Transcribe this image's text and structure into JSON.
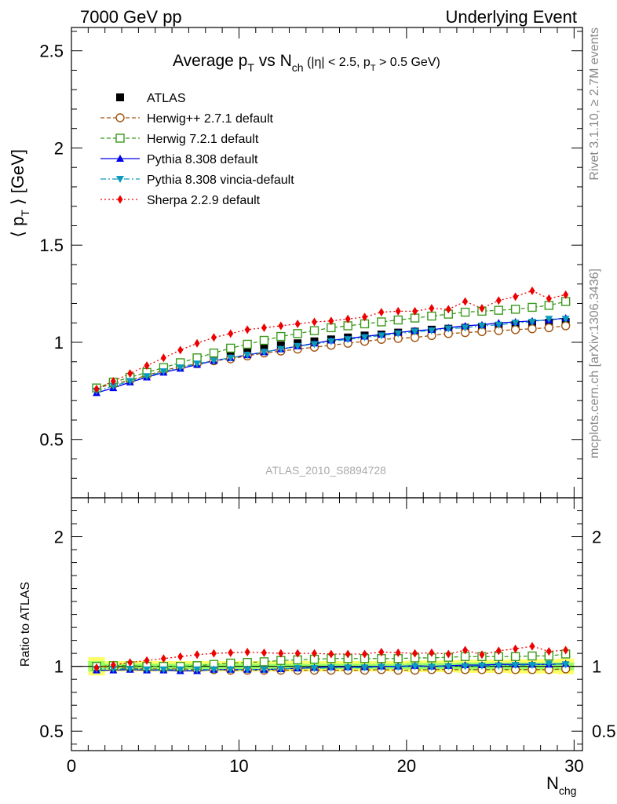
{
  "header": {
    "left": "7000 GeV pp",
    "right": "Underlying Event"
  },
  "side_labels": {
    "top": "Rivet 3.1.10, ≥ 2.7M events",
    "bottom": "mcplots.cern.ch [arXiv:1306.3436]"
  },
  "watermark": "ATLAS_2010_S8894728",
  "title": {
    "main": "Average p",
    "main_sub": "T",
    "vs": " vs N",
    "vs_sub": "ch",
    "cut": " (|η| < 2.5, p",
    "cut_sub": "T",
    "cut_end": " > 0.5 GeV)"
  },
  "ylabel": {
    "pre": "⟨ p",
    "sub": "T",
    "post": " ⟩ [GeV]"
  },
  "ratio_ylabel": "Ratio to ATLAS",
  "xlabel": {
    "main": "N",
    "sub": "chg"
  },
  "colors": {
    "atlas": "#000000",
    "herwigpp": "#a0520d",
    "herwig7": "#3a9a1c",
    "pythia": "#0000ee",
    "vincia": "#0a9bbf",
    "sherpa": "#ee0000",
    "band_inner": "#99ff66",
    "band_outer": "#ffff66"
  },
  "legend": [
    {
      "key": "atlas",
      "label": "ATLAS"
    },
    {
      "key": "herwigpp",
      "label": "Herwig++ 2.7.1 default"
    },
    {
      "key": "herwig7",
      "label": "Herwig 7.2.1 default"
    },
    {
      "key": "pythia",
      "label": "Pythia 8.308 default"
    },
    {
      "key": "vincia",
      "label": "Pythia 8.308 vincia-default"
    },
    {
      "key": "sherpa",
      "label": "Sherpa 2.2.9 default"
    }
  ],
  "chart_data": [
    {
      "type": "line",
      "panel": "main",
      "xlim": [
        0,
        30.5
      ],
      "ylim": [
        0.2,
        2.62
      ],
      "xticks": [
        0,
        10,
        20,
        30
      ],
      "yticks": [
        0.5,
        1,
        1.5,
        2,
        2.5
      ],
      "x": [
        1.5,
        2.5,
        3.5,
        4.5,
        5.5,
        6.5,
        7.5,
        8.5,
        9.5,
        10.5,
        11.5,
        12.5,
        13.5,
        14.5,
        15.5,
        16.5,
        17.5,
        18.5,
        19.5,
        20.5,
        21.5,
        22.5,
        23.5,
        24.5,
        25.5,
        26.5,
        27.5,
        28.5,
        29.5
      ],
      "series": [
        {
          "key": "atlas",
          "name": "ATLAS",
          "marker": "square",
          "values": [
            0.765,
            0.79,
            0.815,
            0.845,
            0.87,
            0.895,
            0.915,
            0.93,
            0.945,
            0.96,
            0.975,
            0.985,
            0.995,
            1.005,
            1.015,
            1.025,
            1.035,
            1.04,
            1.05,
            1.055,
            1.065,
            1.07,
            1.075,
            1.08,
            1.085,
            1.09,
            1.095,
            1.1,
            1.105
          ]
        },
        {
          "key": "herwigpp",
          "name": "Herwig++ 2.7.1 default",
          "marker": "circle-open",
          "values": [
            0.765,
            0.785,
            0.805,
            0.83,
            0.855,
            0.875,
            0.89,
            0.905,
            0.915,
            0.93,
            0.945,
            0.955,
            0.965,
            0.975,
            0.985,
            0.995,
            1.005,
            1.015,
            1.02,
            1.025,
            1.035,
            1.045,
            1.05,
            1.055,
            1.06,
            1.065,
            1.07,
            1.075,
            1.085
          ]
        },
        {
          "key": "herwig7",
          "name": "Herwig 7.2.1 default",
          "marker": "square-open",
          "values": [
            0.765,
            0.795,
            0.82,
            0.845,
            0.87,
            0.895,
            0.92,
            0.945,
            0.97,
            0.99,
            1.01,
            1.03,
            1.045,
            1.06,
            1.075,
            1.085,
            1.095,
            1.105,
            1.115,
            1.125,
            1.135,
            1.145,
            1.155,
            1.16,
            1.165,
            1.17,
            1.18,
            1.19,
            1.21
          ]
        },
        {
          "key": "pythia",
          "name": "Pythia 8.308 default",
          "marker": "triangle-up",
          "values": [
            0.74,
            0.765,
            0.795,
            0.82,
            0.845,
            0.865,
            0.885,
            0.905,
            0.92,
            0.935,
            0.95,
            0.965,
            0.98,
            0.995,
            1.01,
            1.02,
            1.03,
            1.04,
            1.05,
            1.06,
            1.065,
            1.075,
            1.085,
            1.09,
            1.1,
            1.105,
            1.11,
            1.115,
            1.125
          ]
        },
        {
          "key": "vincia",
          "name": "Pythia 8.308 vincia-default",
          "marker": "triangle-down",
          "values": [
            0.75,
            0.775,
            0.8,
            0.825,
            0.85,
            0.87,
            0.89,
            0.905,
            0.92,
            0.935,
            0.95,
            0.965,
            0.98,
            0.99,
            1.005,
            1.015,
            1.025,
            1.035,
            1.045,
            1.055,
            1.06,
            1.07,
            1.075,
            1.085,
            1.09,
            1.1,
            1.105,
            1.12,
            1.12
          ]
        },
        {
          "key": "sherpa",
          "name": "Sherpa 2.2.9 default",
          "marker": "diamond",
          "values": [
            0.76,
            0.8,
            0.84,
            0.88,
            0.92,
            0.96,
            0.995,
            1.025,
            1.045,
            1.065,
            1.075,
            1.085,
            1.095,
            1.105,
            1.11,
            1.12,
            1.13,
            1.155,
            1.16,
            1.16,
            1.175,
            1.17,
            1.21,
            1.175,
            1.215,
            1.235,
            1.265,
            1.225,
            1.245
          ]
        }
      ]
    },
    {
      "type": "line",
      "panel": "ratio",
      "xlim": [
        0,
        30.5
      ],
      "ylim": [
        0.35,
        2.3
      ],
      "yticks": [
        0.5,
        1,
        2
      ],
      "x": [
        1.5,
        2.5,
        3.5,
        4.5,
        5.5,
        6.5,
        7.5,
        8.5,
        9.5,
        10.5,
        11.5,
        12.5,
        13.5,
        14.5,
        15.5,
        16.5,
        17.5,
        18.5,
        19.5,
        20.5,
        21.5,
        22.5,
        23.5,
        24.5,
        25.5,
        26.5,
        27.5,
        28.5,
        29.5
      ],
      "band": {
        "inner": [
          0.04,
          0.02,
          0.02,
          0.02,
          0.02,
          0.02,
          0.02,
          0.02,
          0.02,
          0.02,
          0.02,
          0.02,
          0.02,
          0.02,
          0.02,
          0.02,
          0.02,
          0.02,
          0.02,
          0.025,
          0.025,
          0.025,
          0.03,
          0.03,
          0.03,
          0.03,
          0.03,
          0.03,
          0.03
        ],
        "outer": [
          0.07,
          0.04,
          0.04,
          0.04,
          0.04,
          0.04,
          0.04,
          0.04,
          0.04,
          0.04,
          0.04,
          0.04,
          0.04,
          0.04,
          0.04,
          0.04,
          0.04,
          0.04,
          0.04,
          0.045,
          0.045,
          0.045,
          0.05,
          0.05,
          0.05,
          0.055,
          0.055,
          0.055,
          0.06
        ]
      },
      "series": [
        {
          "key": "herwigpp",
          "marker": "circle-open",
          "values": [
            1.0,
            0.99,
            0.985,
            0.98,
            0.98,
            0.98,
            0.975,
            0.975,
            0.97,
            0.97,
            0.97,
            0.97,
            0.97,
            0.97,
            0.97,
            0.97,
            0.97,
            0.975,
            0.97,
            0.97,
            0.975,
            0.975,
            0.975,
            0.975,
            0.975,
            0.975,
            0.975,
            0.975,
            0.98
          ]
        },
        {
          "key": "herwig7",
          "marker": "square-open",
          "values": [
            1.0,
            1.005,
            1.005,
            1.0,
            1.0,
            1.0,
            1.005,
            1.015,
            1.025,
            1.03,
            1.035,
            1.045,
            1.05,
            1.055,
            1.06,
            1.06,
            1.06,
            1.06,
            1.06,
            1.065,
            1.065,
            1.07,
            1.075,
            1.075,
            1.075,
            1.075,
            1.08,
            1.08,
            1.095
          ]
        },
        {
          "key": "pythia",
          "marker": "triangle-up",
          "values": [
            0.97,
            0.97,
            0.975,
            0.97,
            0.97,
            0.965,
            0.965,
            0.975,
            0.975,
            0.975,
            0.975,
            0.98,
            0.985,
            0.99,
            0.995,
            0.995,
            0.995,
            1.0,
            1.0,
            1.005,
            1.0,
            1.005,
            1.01,
            1.01,
            1.015,
            1.015,
            1.015,
            1.015,
            1.02
          ]
        },
        {
          "key": "vincia",
          "marker": "triangle-down",
          "values": [
            0.98,
            0.98,
            0.98,
            0.975,
            0.975,
            0.975,
            0.975,
            0.975,
            0.975,
            0.975,
            0.975,
            0.98,
            0.985,
            0.985,
            0.99,
            0.99,
            0.99,
            0.995,
            0.995,
            1.0,
            0.995,
            1.0,
            1.0,
            1.005,
            1.005,
            1.01,
            1.01,
            1.02,
            1.015
          ]
        },
        {
          "key": "sherpa",
          "marker": "diamond",
          "values": [
            0.99,
            1.01,
            1.03,
            1.045,
            1.06,
            1.075,
            1.09,
            1.1,
            1.105,
            1.11,
            1.105,
            1.1,
            1.1,
            1.1,
            1.095,
            1.095,
            1.095,
            1.11,
            1.105,
            1.1,
            1.105,
            1.095,
            1.125,
            1.09,
            1.12,
            1.135,
            1.155,
            1.115,
            1.125
          ]
        }
      ]
    }
  ]
}
